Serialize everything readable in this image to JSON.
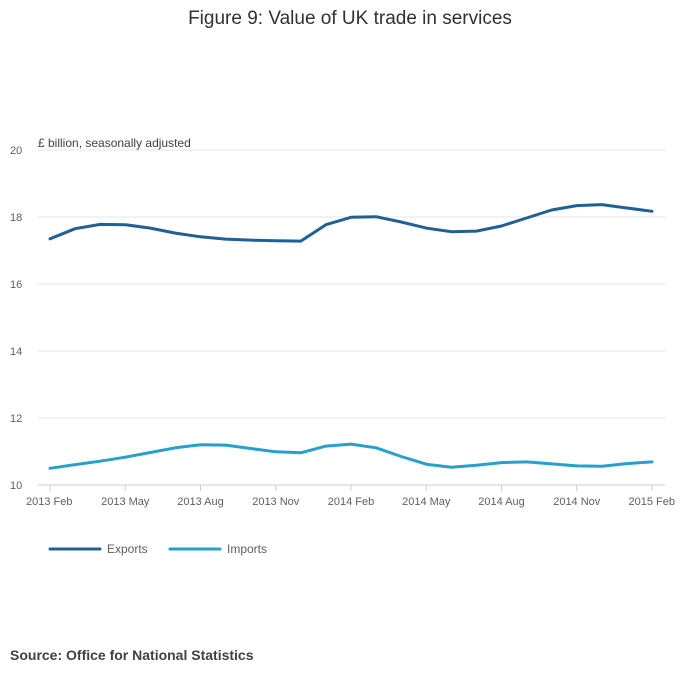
{
  "chart_data": {
    "type": "line",
    "title": "Figure 9: Value of UK trade in services",
    "ylabel": "£ billion, seasonally adjusted",
    "xlabel": "",
    "ylim": [
      10,
      20
    ],
    "yticks": [
      "10",
      "12",
      "14",
      "16",
      "18",
      "20"
    ],
    "ytick_values": [
      10,
      12,
      14,
      16,
      18,
      20
    ],
    "x": [
      "2013 Feb",
      "2013 Mar",
      "2013 Apr",
      "2013 May",
      "2013 Jun",
      "2013 Jul",
      "2013 Aug",
      "2013 Sep",
      "2013 Oct",
      "2013 Nov",
      "2013 Dec",
      "2014 Jan",
      "2014 Feb",
      "2014 Mar",
      "2014 Apr",
      "2014 May",
      "2014 Jun",
      "2014 Jul",
      "2014 Aug",
      "2014 Sep",
      "2014 Oct",
      "2014 Nov",
      "2014 Dec",
      "2015 Jan",
      "2015 Feb"
    ],
    "xticks": [
      "2013 Feb",
      "2013 May",
      "2013 Aug",
      "2013 Nov",
      "2014 Feb",
      "2014 May",
      "2014 Aug",
      "2014 Nov",
      "2015 Feb"
    ],
    "xtick_indices": [
      0,
      3,
      6,
      9,
      12,
      15,
      18,
      21,
      24
    ],
    "grid": true,
    "legend_position": "bottom-left",
    "series": [
      {
        "name": "Exports",
        "color": "#206095",
        "values": [
          17.35,
          17.65,
          17.78,
          17.77,
          17.67,
          17.52,
          17.41,
          17.34,
          17.31,
          17.29,
          17.28,
          17.77,
          17.99,
          18.01,
          17.85,
          17.67,
          17.56,
          17.58,
          17.73,
          17.97,
          18.21,
          18.34,
          18.37,
          18.27,
          18.17
        ]
      },
      {
        "name": "Imports",
        "color": "#27a0cc",
        "values": [
          10.5,
          10.61,
          10.71,
          10.83,
          10.97,
          11.11,
          11.2,
          11.19,
          11.09,
          10.99,
          10.96,
          11.16,
          11.22,
          11.11,
          10.85,
          10.62,
          10.53,
          10.59,
          10.67,
          10.69,
          10.63,
          10.57,
          10.56,
          10.64,
          10.69
        ]
      }
    ]
  },
  "footer": {
    "source": "Source: Office for National Statistics"
  }
}
